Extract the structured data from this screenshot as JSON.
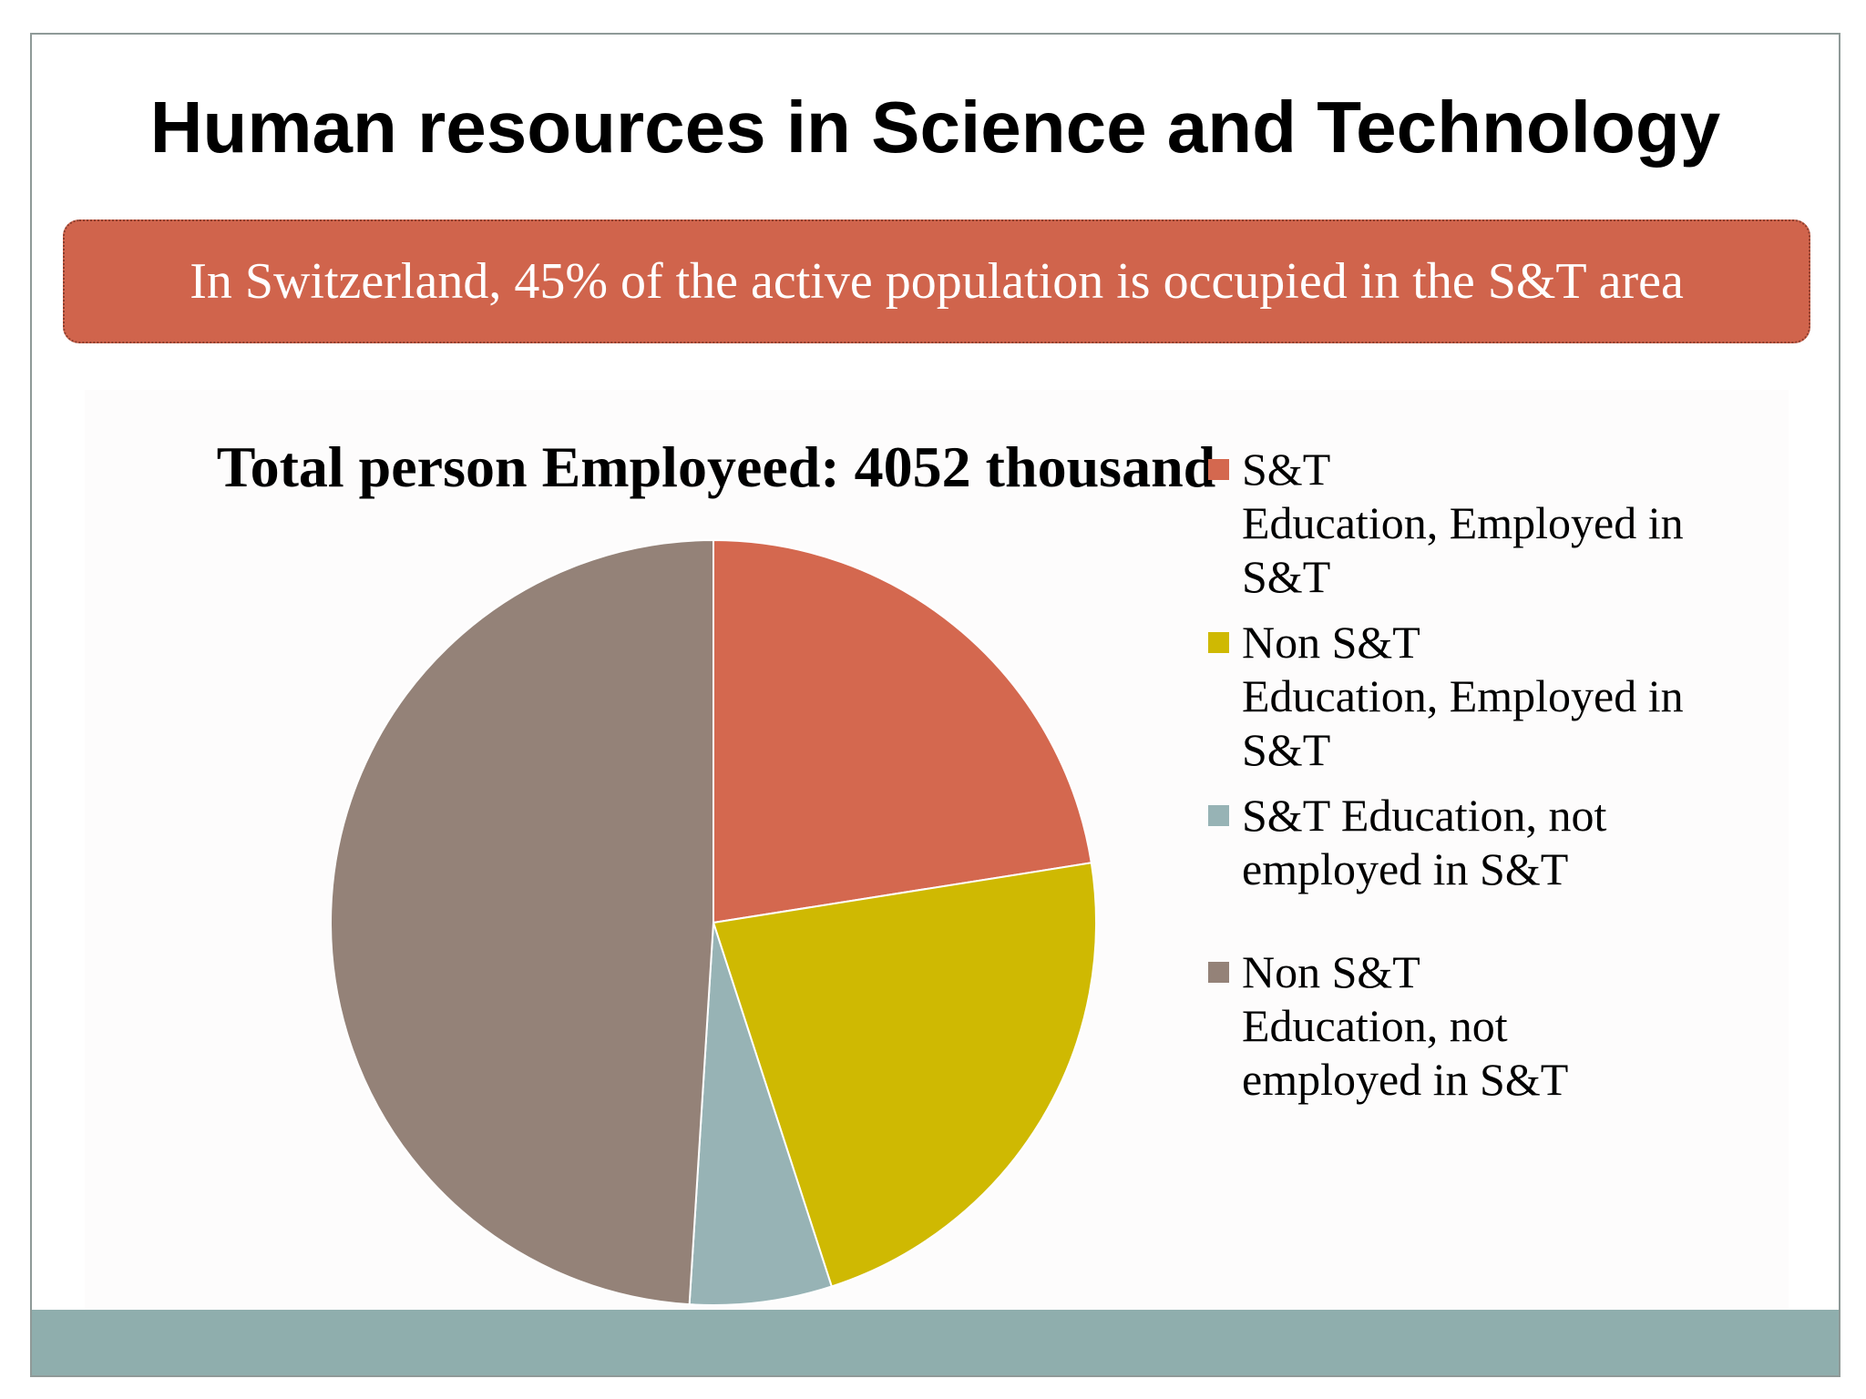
{
  "slide": {
    "title": "Human resources in Science and Technology",
    "banner_text": "In Switzerland, 45% of the active population is occupied in the S&T area"
  },
  "colors": {
    "banner": "#d0644c",
    "footer_bar": "#8faead"
  },
  "chart_data": {
    "type": "pie",
    "title": "Total person Employeed: 4052 thousand",
    "legend_position": "right",
    "start_angle_deg": 0,
    "direction": "clockwise",
    "slices": [
      {
        "label": "S&T Education, Employed in S&T",
        "legend_lines": [
          "S&T",
          "Education, Employed in",
          "S&T"
        ],
        "value": 22.5,
        "color": "#d4684f"
      },
      {
        "label": "Non S&T Education, Employed in S&T",
        "legend_lines": [
          " Non S&T",
          "Education, Employed in",
          "S&T"
        ],
        "value": 22.5,
        "color": "#cfb902"
      },
      {
        "label": "S&T Education, not employed in S&T",
        "legend_lines": [
          "S&T Education, not",
          "employed in S&T"
        ],
        "value": 6,
        "color": "#97b3b5"
      },
      {
        "label": "Non S&T Education, not employed in S&T",
        "legend_lines": [
          "Non S&T",
          "Education, not",
          "employed in S&T"
        ],
        "value": 49,
        "color": "#948278"
      }
    ]
  }
}
